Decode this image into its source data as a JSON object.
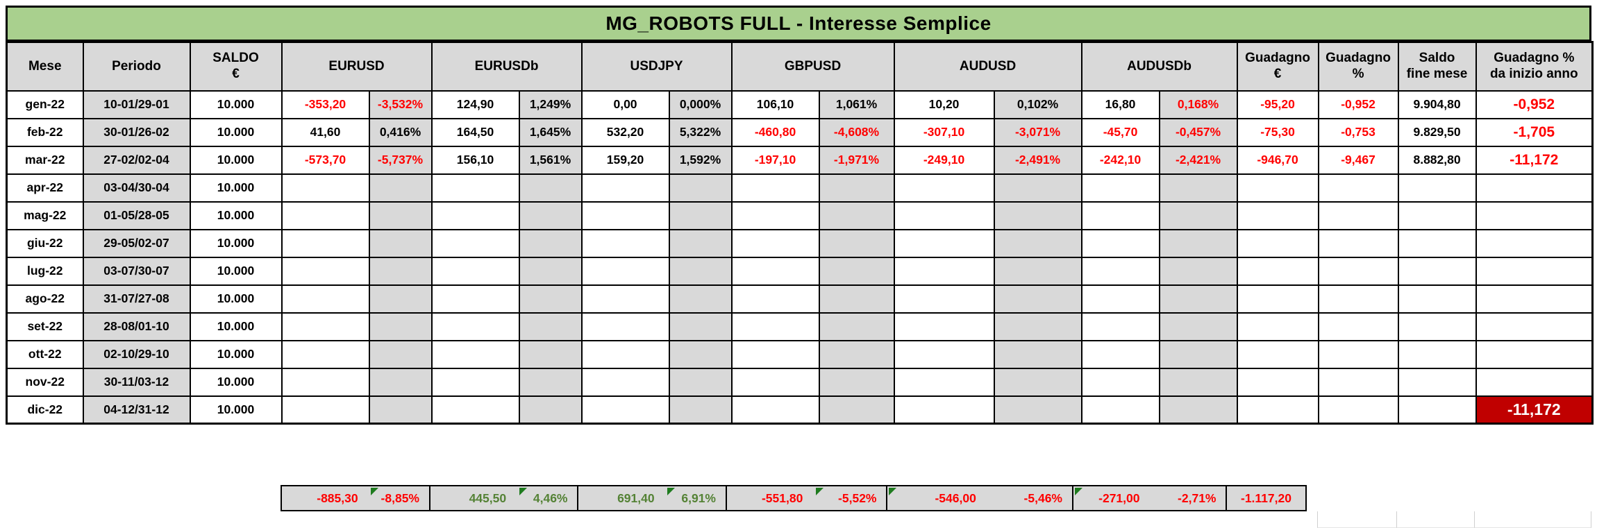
{
  "title": "MG_ROBOTS FULL - Interesse Semplice",
  "colors": {
    "title_bg": "#A9D08E",
    "header_bg": "#D9D9D9",
    "shaded_cell_bg": "#D9D9D9",
    "negative_text": "#FF0000",
    "positive_total_text": "#548235",
    "alert_cell_bg": "#C00000",
    "alert_cell_text": "#FFFFFF",
    "comment_triangle": "#1E7B1E"
  },
  "headers": {
    "mese": "Mese",
    "periodo": "Periodo",
    "saldo": "SALDO\n€",
    "groups": [
      "EURUSD",
      "EURUSDb",
      "USDJPY",
      "GBPUSD",
      "AUDUSD",
      "AUDUSDb"
    ],
    "guadagno_eur": "Guadagno\n€",
    "guadagno_pct": "Guadagno\n%",
    "saldo_fine_mese": "Saldo\nfine mese",
    "ytd": "Guadagno %\nda inizio anno"
  },
  "rows": [
    {
      "mese": "gen-22",
      "periodo": "10-01/29-01",
      "saldo": "10.000",
      "pairs": [
        {
          "v": "-353,20",
          "p": "-3,532%",
          "vc": "red",
          "pc": "red"
        },
        {
          "v": "124,90",
          "p": "1,249%",
          "vc": "black",
          "pc": "black"
        },
        {
          "v": "0,00",
          "p": "0,000%",
          "vc": "black",
          "pc": "black"
        },
        {
          "v": "106,10",
          "p": "1,061%",
          "vc": "black",
          "pc": "black"
        },
        {
          "v": "10,20",
          "p": "0,102%",
          "vc": "black",
          "pc": "black"
        },
        {
          "v": "16,80",
          "p": "0,168%",
          "vc": "black",
          "pc": "red"
        }
      ],
      "guadagno_eur": "-95,20",
      "guadagno_pct": "-0,952",
      "saldo_fine": "9.904,80",
      "ytd": "-0,952",
      "ytd_alert": false
    },
    {
      "mese": "feb-22",
      "periodo": "30-01/26-02",
      "saldo": "10.000",
      "pairs": [
        {
          "v": "41,60",
          "p": "0,416%",
          "vc": "black",
          "pc": "black"
        },
        {
          "v": "164,50",
          "p": "1,645%",
          "vc": "black",
          "pc": "black"
        },
        {
          "v": "532,20",
          "p": "5,322%",
          "vc": "black",
          "pc": "black"
        },
        {
          "v": "-460,80",
          "p": "-4,608%",
          "vc": "red",
          "pc": "red"
        },
        {
          "v": "-307,10",
          "p": "-3,071%",
          "vc": "red",
          "pc": "red"
        },
        {
          "v": "-45,70",
          "p": "-0,457%",
          "vc": "red",
          "pc": "red"
        }
      ],
      "guadagno_eur": "-75,30",
      "guadagno_pct": "-0,753",
      "saldo_fine": "9.829,50",
      "ytd": "-1,705",
      "ytd_alert": false
    },
    {
      "mese": "mar-22",
      "periodo": "27-02/02-04",
      "saldo": "10.000",
      "pairs": [
        {
          "v": "-573,70",
          "p": "-5,737%",
          "vc": "red",
          "pc": "red"
        },
        {
          "v": "156,10",
          "p": "1,561%",
          "vc": "black",
          "pc": "black"
        },
        {
          "v": "159,20",
          "p": "1,592%",
          "vc": "black",
          "pc": "black"
        },
        {
          "v": "-197,10",
          "p": "-1,971%",
          "vc": "red",
          "pc": "red"
        },
        {
          "v": "-249,10",
          "p": "-2,491%",
          "vc": "red",
          "pc": "red"
        },
        {
          "v": "-242,10",
          "p": "-2,421%",
          "vc": "red",
          "pc": "red"
        }
      ],
      "guadagno_eur": "-946,70",
      "guadagno_pct": "-9,467",
      "saldo_fine": "8.882,80",
      "ytd": "-11,172",
      "ytd_alert": false
    },
    {
      "mese": "apr-22",
      "periodo": "03-04/30-04",
      "saldo": "10.000",
      "pairs": [],
      "guadagno_eur": "",
      "guadagno_pct": "",
      "saldo_fine": "",
      "ytd": "",
      "ytd_alert": false
    },
    {
      "mese": "mag-22",
      "periodo": "01-05/28-05",
      "saldo": "10.000",
      "pairs": [],
      "guadagno_eur": "",
      "guadagno_pct": "",
      "saldo_fine": "",
      "ytd": "",
      "ytd_alert": false
    },
    {
      "mese": "giu-22",
      "periodo": "29-05/02-07",
      "saldo": "10.000",
      "pairs": [],
      "guadagno_eur": "",
      "guadagno_pct": "",
      "saldo_fine": "",
      "ytd": "",
      "ytd_alert": false
    },
    {
      "mese": "lug-22",
      "periodo": "03-07/30-07",
      "saldo": "10.000",
      "pairs": [],
      "guadagno_eur": "",
      "guadagno_pct": "",
      "saldo_fine": "",
      "ytd": "",
      "ytd_alert": false
    },
    {
      "mese": "ago-22",
      "periodo": "31-07/27-08",
      "saldo": "10.000",
      "pairs": [],
      "guadagno_eur": "",
      "guadagno_pct": "",
      "saldo_fine": "",
      "ytd": "",
      "ytd_alert": false
    },
    {
      "mese": "set-22",
      "periodo": "28-08/01-10",
      "saldo": "10.000",
      "pairs": [],
      "guadagno_eur": "",
      "guadagno_pct": "",
      "saldo_fine": "",
      "ytd": "",
      "ytd_alert": false
    },
    {
      "mese": "ott-22",
      "periodo": "02-10/29-10",
      "saldo": "10.000",
      "pairs": [],
      "guadagno_eur": "",
      "guadagno_pct": "",
      "saldo_fine": "",
      "ytd": "",
      "ytd_alert": false
    },
    {
      "mese": "nov-22",
      "periodo": "30-11/03-12",
      "saldo": "10.000",
      "pairs": [],
      "guadagno_eur": "",
      "guadagno_pct": "",
      "saldo_fine": "",
      "ytd": "",
      "ytd_alert": false
    },
    {
      "mese": "dic-22",
      "periodo": "04-12/31-12",
      "saldo": "10.000",
      "pairs": [],
      "guadagno_eur": "",
      "guadagno_pct": "",
      "saldo_fine": "",
      "ytd": "-11,172",
      "ytd_alert": true
    }
  ],
  "totals": {
    "pairs": [
      {
        "group": "EURUSD",
        "v": "-885,30",
        "p": "-8,85%",
        "color": "red",
        "triangle": "pct"
      },
      {
        "group": "EURUSDb",
        "v": "445,50",
        "p": "4,46%",
        "color": "green",
        "triangle": "pct"
      },
      {
        "group": "USDJPY",
        "v": "691,40",
        "p": "6,91%",
        "color": "green",
        "triangle": "pct"
      },
      {
        "group": "GBPUSD",
        "v": "-551,80",
        "p": "-5,52%",
        "color": "red",
        "triangle": "pct"
      },
      {
        "group": "AUDUSD",
        "v": "-546,00",
        "p": "-5,46%",
        "color": "red",
        "triangle": "left"
      },
      {
        "group": "AUDUSDb",
        "v": "-271,00",
        "p": "-2,71%",
        "color": "red",
        "triangle": "left"
      }
    ],
    "guadagno_eur": "-1.117,20"
  }
}
